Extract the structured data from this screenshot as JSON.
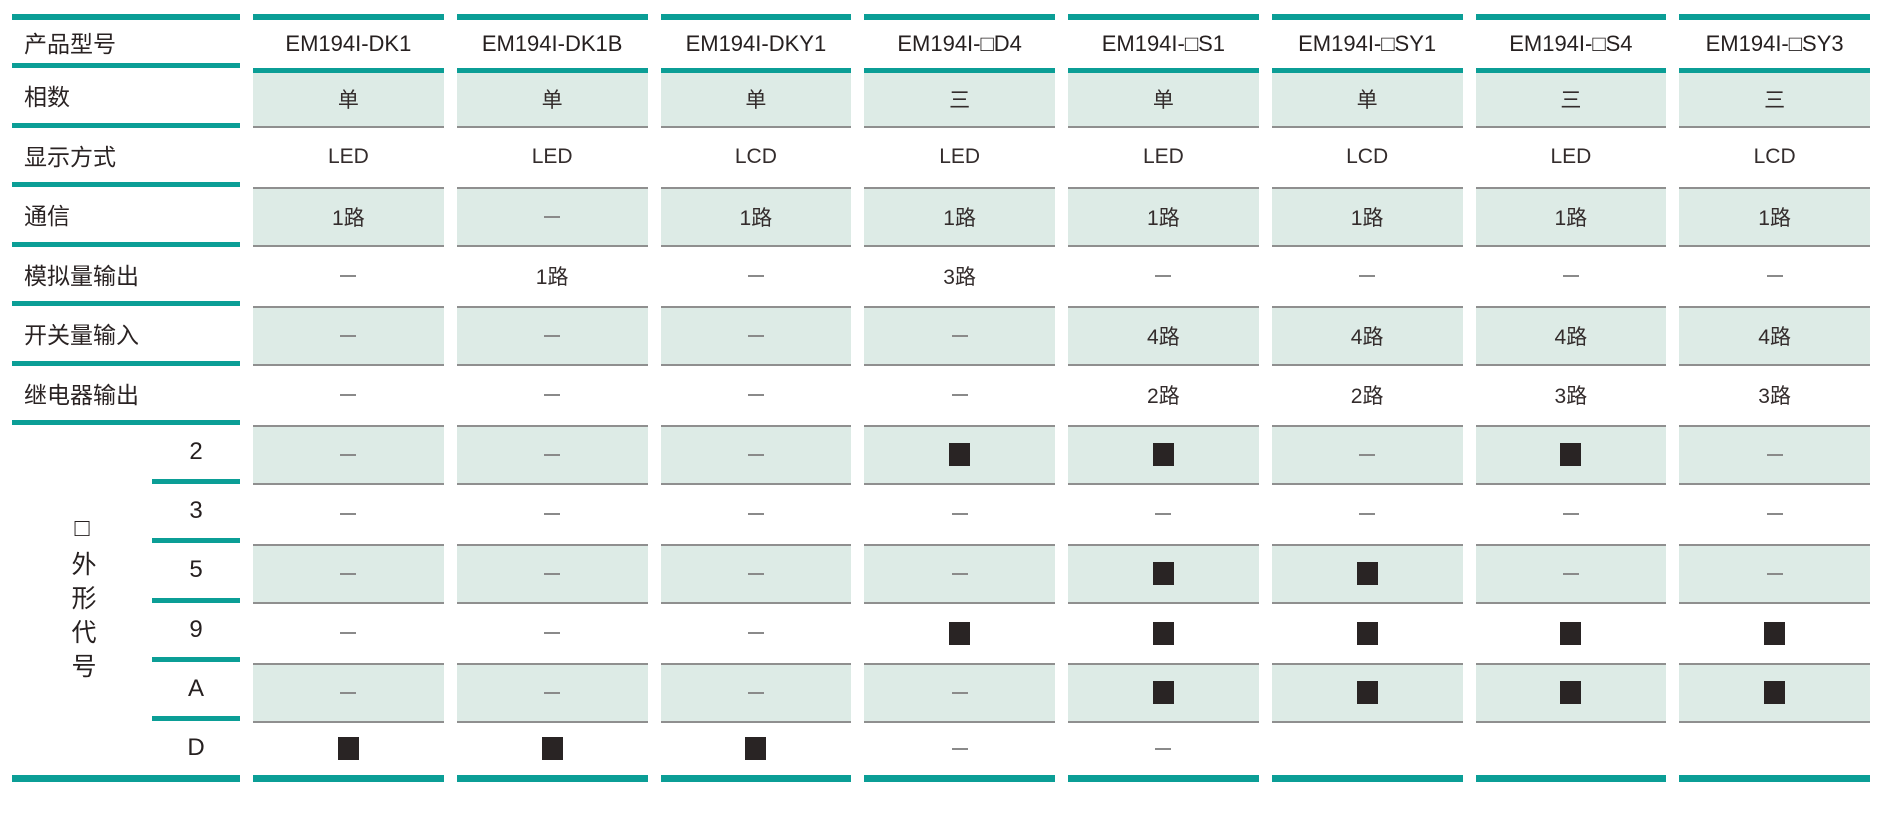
{
  "table": {
    "symbols": {
      "dash": "—",
      "square": "■",
      "empty": ""
    },
    "colors": {
      "teal": "#0b9e96",
      "shaded_row_bg": "#ddebe6",
      "cell_border_gray": "#8f8f8f",
      "square_marker": "#292424",
      "dash_marker": "#8a8a8a",
      "text": "#2a2323"
    },
    "header": {
      "label": "产品型号",
      "columns": [
        "EM194I-DK1",
        "EM194I-DK1B",
        "EM194I-DKY1",
        "EM194I-□D4",
        "EM194I-□S1",
        "EM194I-□SY1",
        "EM194I-□S4",
        "EM194I-□SY3"
      ]
    },
    "rows": [
      {
        "label": "相数",
        "shaded": true,
        "cells": [
          "单",
          "单",
          "单",
          "三",
          "单",
          "单",
          "三",
          "三"
        ]
      },
      {
        "label": "显示方式",
        "shaded": false,
        "cells": [
          "LED",
          "LED",
          "LCD",
          "LED",
          "LED",
          "LCD",
          "LED",
          "LCD"
        ]
      },
      {
        "label": "通信",
        "shaded": true,
        "cells": [
          "1路",
          "—",
          "1路",
          "1路",
          "1路",
          "1路",
          "1路",
          "1路"
        ]
      },
      {
        "label": "模拟量输出",
        "shaded": false,
        "cells": [
          "—",
          "1路",
          "—",
          "3路",
          "—",
          "—",
          "—",
          "—"
        ]
      },
      {
        "label": "开关量输入",
        "shaded": true,
        "cells": [
          "—",
          "—",
          "—",
          "—",
          "4路",
          "4路",
          "4路",
          "4路"
        ]
      },
      {
        "label": "继电器输出",
        "shaded": false,
        "cells": [
          "—",
          "—",
          "—",
          "—",
          "2路",
          "2路",
          "3路",
          "3路"
        ]
      }
    ],
    "group": {
      "vertical_label": "□外形代号",
      "rows": [
        {
          "label": "2",
          "shaded": true,
          "cells": [
            "—",
            "—",
            "—",
            "■",
            "■",
            "—",
            "■",
            "—"
          ]
        },
        {
          "label": "3",
          "shaded": false,
          "cells": [
            "—",
            "—",
            "—",
            "—",
            "—",
            "—",
            "—",
            "—"
          ]
        },
        {
          "label": "5",
          "shaded": true,
          "cells": [
            "—",
            "—",
            "—",
            "—",
            "■",
            "■",
            "—",
            "—"
          ]
        },
        {
          "label": "9",
          "shaded": false,
          "cells": [
            "—",
            "—",
            "—",
            "■",
            "■",
            "■",
            "■",
            "■"
          ]
        },
        {
          "label": "A",
          "shaded": true,
          "cells": [
            "—",
            "—",
            "—",
            "—",
            "■",
            "■",
            "■",
            "■"
          ]
        },
        {
          "label": "D",
          "shaded": false,
          "cells": [
            "■",
            "■",
            "■",
            "—",
            "—",
            "",
            "",
            ""
          ]
        }
      ]
    }
  }
}
